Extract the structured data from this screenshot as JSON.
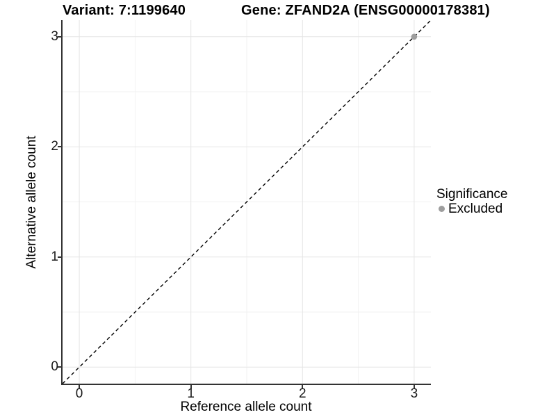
{
  "chart_data": {
    "type": "scatter",
    "title_variant": "Variant: 7:1199640",
    "title_gene": "Gene: ZFAND2A (ENSG00000178381)",
    "xlabel": "Reference allele count",
    "ylabel": "Alternative allele count",
    "xlim": [
      -0.15,
      3.15
    ],
    "ylim": [
      -0.15,
      3.15
    ],
    "xticks": [
      0,
      1,
      2,
      3
    ],
    "yticks": [
      0,
      1,
      2,
      3
    ],
    "minor_gridlines_x": [
      0.5,
      1.5,
      2.5
    ],
    "minor_gridlines_y": [
      0.5,
      1.5,
      2.5
    ],
    "grid": "major and minor gridlines on",
    "points": [
      {
        "x": 3,
        "y": 3,
        "significance": "Excluded"
      }
    ],
    "reference_line": {
      "type": "identity",
      "equation": "y = x",
      "style": "dashed",
      "color": "#000000"
    },
    "legend": {
      "title": "Significance",
      "position": "right",
      "entries": [
        {
          "label": "Excluded",
          "color": "#9e9e9e"
        }
      ]
    }
  },
  "colors": {
    "background": "#ffffff",
    "axis_line": "#333333",
    "grid_major": "#e5e5e5",
    "grid_minor": "#f2f2f2",
    "point": "#9e9e9e",
    "text": "#000000"
  }
}
